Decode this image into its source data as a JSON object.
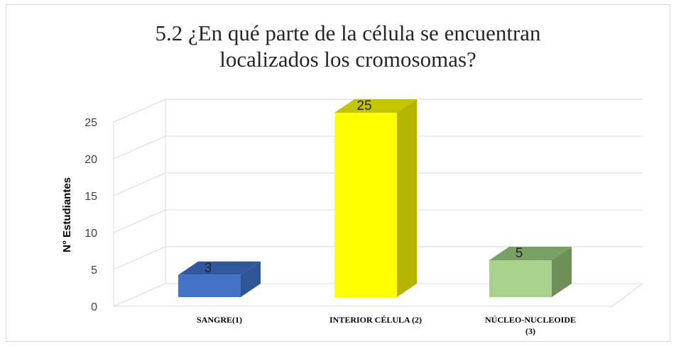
{
  "chart_data": {
    "type": "bar",
    "title_lines": [
      "5.2 ¿En qué parte de la célula se encuentran",
      "localizados los cromosomas?"
    ],
    "ylabel": "N° Estudiantes",
    "xlabel": "",
    "categories": [
      {
        "label_lines": [
          "SANGRE(1)"
        ]
      },
      {
        "label_lines": [
          "INTERIOR CÉLULA (2)"
        ]
      },
      {
        "label_lines": [
          "NÚCLEO-NUCLEOIDE",
          "(3)"
        ]
      }
    ],
    "values": [
      3,
      25,
      5
    ],
    "data_labels": [
      "3",
      "25",
      "5"
    ],
    "ylim": [
      0,
      25
    ],
    "yticks": [
      0,
      5,
      10,
      15,
      20,
      25
    ],
    "grid": true,
    "legend": "none",
    "style": "3d-column",
    "colors": {
      "bars": [
        {
          "front": "#4472c4",
          "side": "#2f5597",
          "top": "#2f58a0"
        },
        {
          "front": "#ffff00",
          "side": "#b3b300",
          "top": "#c4c400"
        },
        {
          "front": "#a9d18e",
          "side": "#6f8f58",
          "top": "#7aa065"
        }
      ],
      "grid": "#d9d9d9",
      "text": "#404040"
    }
  }
}
